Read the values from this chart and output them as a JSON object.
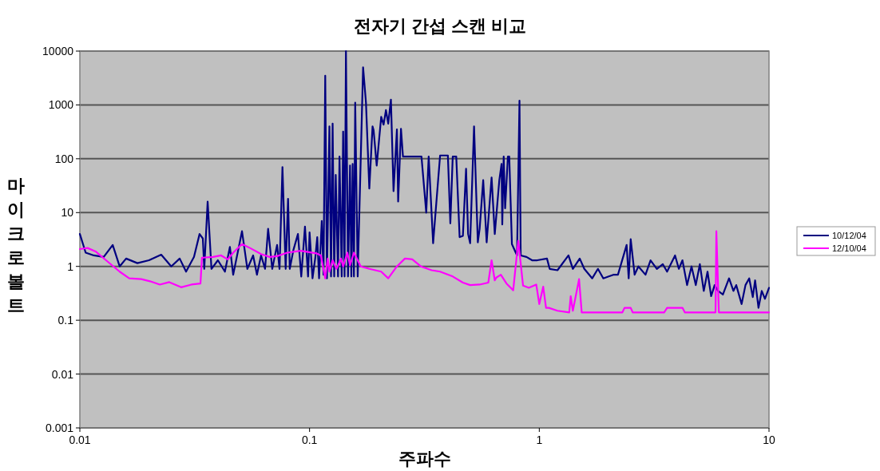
{
  "chart_data": {
    "type": "line",
    "title": "전자기 간섭 스캔 비교",
    "xlabel": "주파수",
    "ylabel": "마이크로볼트",
    "log": "xy",
    "xlim": [
      0.01,
      10
    ],
    "xticks": [
      0.01,
      0.1,
      1,
      10
    ],
    "ylim": [
      0.001,
      10000
    ],
    "yticks": [
      0.001,
      0.01,
      0.1,
      1,
      10,
      100,
      1000,
      10000
    ],
    "grid": "y",
    "legend": "right",
    "series": [
      {
        "name": "10/12/04",
        "color": "#000080",
        "x": [
          0.01,
          0.0106,
          0.0115,
          0.0127,
          0.0139,
          0.0149,
          0.0159,
          0.0178,
          0.02,
          0.0226,
          0.025,
          0.0272,
          0.029,
          0.0314,
          0.0332,
          0.0343,
          0.0348,
          0.036,
          0.0374,
          0.0399,
          0.0428,
          0.045,
          0.0465,
          0.0508,
          0.0536,
          0.0568,
          0.059,
          0.0615,
          0.064,
          0.066,
          0.0688,
          0.0722,
          0.074,
          0.0762,
          0.0787,
          0.0806,
          0.082,
          0.085,
          0.089,
          0.092,
          0.0955,
          0.0985,
          0.1,
          0.103,
          0.106,
          0.108,
          0.11,
          0.113,
          0.115,
          0.117,
          0.119,
          0.122,
          0.124,
          0.126,
          0.128,
          0.13,
          0.133,
          0.135,
          0.138,
          0.14,
          0.142,
          0.144,
          0.147,
          0.15,
          0.152,
          0.154,
          0.156,
          0.158,
          0.162,
          0.171,
          0.176,
          0.182,
          0.188,
          0.19,
          0.196,
          0.205,
          0.21,
          0.215,
          0.22,
          0.226,
          0.232,
          0.24,
          0.243,
          0.25,
          0.255,
          0.307,
          0.322,
          0.33,
          0.345,
          0.37,
          0.4,
          0.41,
          0.42,
          0.435,
          0.45,
          0.465,
          0.48,
          0.49,
          0.5,
          0.52,
          0.54,
          0.55,
          0.57,
          0.59,
          0.62,
          0.64,
          0.67,
          0.685,
          0.69,
          0.7,
          0.71,
          0.73,
          0.74,
          0.76,
          0.8,
          0.82,
          0.83,
          0.88,
          0.93,
          0.98,
          1.08,
          1.11,
          1.2,
          1.34,
          1.4,
          1.5,
          1.57,
          1.7,
          1.8,
          1.9,
          2.1,
          2.2,
          2.4,
          2.45,
          2.5,
          2.6,
          2.7,
          2.9,
          3.05,
          3.25,
          3.45,
          3.6,
          3.9,
          4.05,
          4.2,
          4.4,
          4.6,
          4.8,
          5.0,
          5.2,
          5.4,
          5.6,
          5.8,
          6.0,
          6.3,
          6.7,
          7.0,
          7.2,
          7.6,
          7.9,
          8.2,
          8.5,
          8.7,
          9.0,
          9.3,
          9.6,
          10
        ],
        "values": [
          4,
          1.8,
          1.6,
          1.5,
          2.5,
          1.0,
          1.4,
          1.15,
          1.3,
          1.65,
          1.0,
          1.4,
          0.8,
          1.5,
          4,
          3.3,
          0.9,
          16,
          0.9,
          1.3,
          0.8,
          2.3,
          0.7,
          4.5,
          0.9,
          1.6,
          0.7,
          1.6,
          0.9,
          5,
          0.9,
          2.5,
          0.9,
          70,
          0.9,
          18,
          0.9,
          2,
          4,
          0.65,
          5.5,
          0.65,
          4.3,
          0.6,
          1.5,
          3.5,
          0.6,
          7,
          0.7,
          3500,
          0.6,
          400,
          0.65,
          450,
          0.65,
          50,
          0.65,
          110,
          0.65,
          320,
          0.65,
          10000,
          0.65,
          75,
          0.65,
          80,
          0.65,
          1100,
          0.65,
          5000,
          1100,
          28,
          400,
          340,
          75,
          600,
          430,
          800,
          450,
          1250,
          25,
          350,
          16,
          360,
          110,
          110,
          10,
          110,
          2.7,
          115,
          115,
          6.3,
          110,
          110,
          3.5,
          3.7,
          65,
          4,
          2.7,
          400,
          2.8,
          5,
          40,
          2.8,
          45,
          4,
          40,
          80,
          6,
          110,
          12,
          110,
          110,
          2.6,
          1.6,
          1200,
          1.6,
          1.5,
          1.3,
          1.3,
          1.4,
          0.9,
          0.85,
          1.6,
          0.9,
          1.4,
          0.9,
          0.6,
          0.9,
          0.6,
          0.7,
          0.7,
          2.5,
          0.6,
          3.2,
          0.7,
          1.0,
          0.7,
          1.3,
          0.9,
          1.1,
          0.8,
          1.6,
          0.9,
          1.3,
          0.45,
          1.0,
          0.45,
          1.1,
          0.35,
          0.8,
          0.28,
          0.45,
          0.35,
          0.3,
          0.6,
          0.35,
          0.45,
          0.2,
          0.45,
          0.6,
          0.27,
          0.55,
          0.17,
          0.35,
          0.25,
          0.4
        ]
      },
      {
        "name": "12/10/04",
        "color": "#ff00ff",
        "x": [
          0.01,
          0.0108,
          0.0117,
          0.013,
          0.0149,
          0.0164,
          0.0185,
          0.0202,
          0.0223,
          0.0245,
          0.0276,
          0.0306,
          0.0335,
          0.034,
          0.038,
          0.0412,
          0.044,
          0.0465,
          0.0508,
          0.055,
          0.0615,
          0.067,
          0.0722,
          0.08,
          0.0915,
          0.107,
          0.112,
          0.117,
          0.12,
          0.122,
          0.126,
          0.131,
          0.137,
          0.14,
          0.146,
          0.15,
          0.156,
          0.167,
          0.182,
          0.205,
          0.22,
          0.24,
          0.26,
          0.28,
          0.305,
          0.34,
          0.37,
          0.42,
          0.465,
          0.5,
          0.55,
          0.6,
          0.62,
          0.64,
          0.65,
          0.68,
          0.72,
          0.77,
          0.81,
          0.85,
          0.9,
          0.97,
          1.0,
          1.04,
          1.07,
          1.1,
          1.2,
          1.35,
          1.37,
          1.4,
          1.49,
          1.53,
          2.3,
          2.35,
          2.5,
          2.55,
          3.5,
          3.6,
          4.2,
          4.3,
          5.85,
          5.9,
          6.05,
          10
        ],
        "values": [
          2.1,
          2.2,
          1.9,
          1.3,
          0.8,
          0.6,
          0.58,
          0.53,
          0.46,
          0.51,
          0.41,
          0.46,
          0.48,
          1.45,
          1.5,
          1.6,
          1.35,
          1.8,
          2.6,
          2.2,
          1.7,
          1.5,
          1.55,
          1.8,
          1.95,
          1.75,
          1.6,
          0.6,
          1.4,
          0.8,
          1.3,
          0.9,
          1.4,
          1.0,
          1.8,
          1.05,
          1.8,
          1.0,
          0.9,
          0.8,
          0.6,
          1.0,
          1.4,
          1.35,
          1.0,
          0.85,
          0.8,
          0.65,
          0.5,
          0.45,
          0.46,
          0.5,
          1.3,
          0.55,
          0.62,
          0.7,
          0.48,
          0.36,
          3.0,
          0.44,
          0.4,
          0.46,
          0.2,
          0.42,
          0.17,
          0.17,
          0.15,
          0.14,
          0.28,
          0.15,
          0.58,
          0.14,
          0.14,
          0.17,
          0.17,
          0.14,
          0.14,
          0.17,
          0.17,
          0.14,
          0.14,
          4.5,
          0.14,
          0.14
        ]
      }
    ]
  }
}
